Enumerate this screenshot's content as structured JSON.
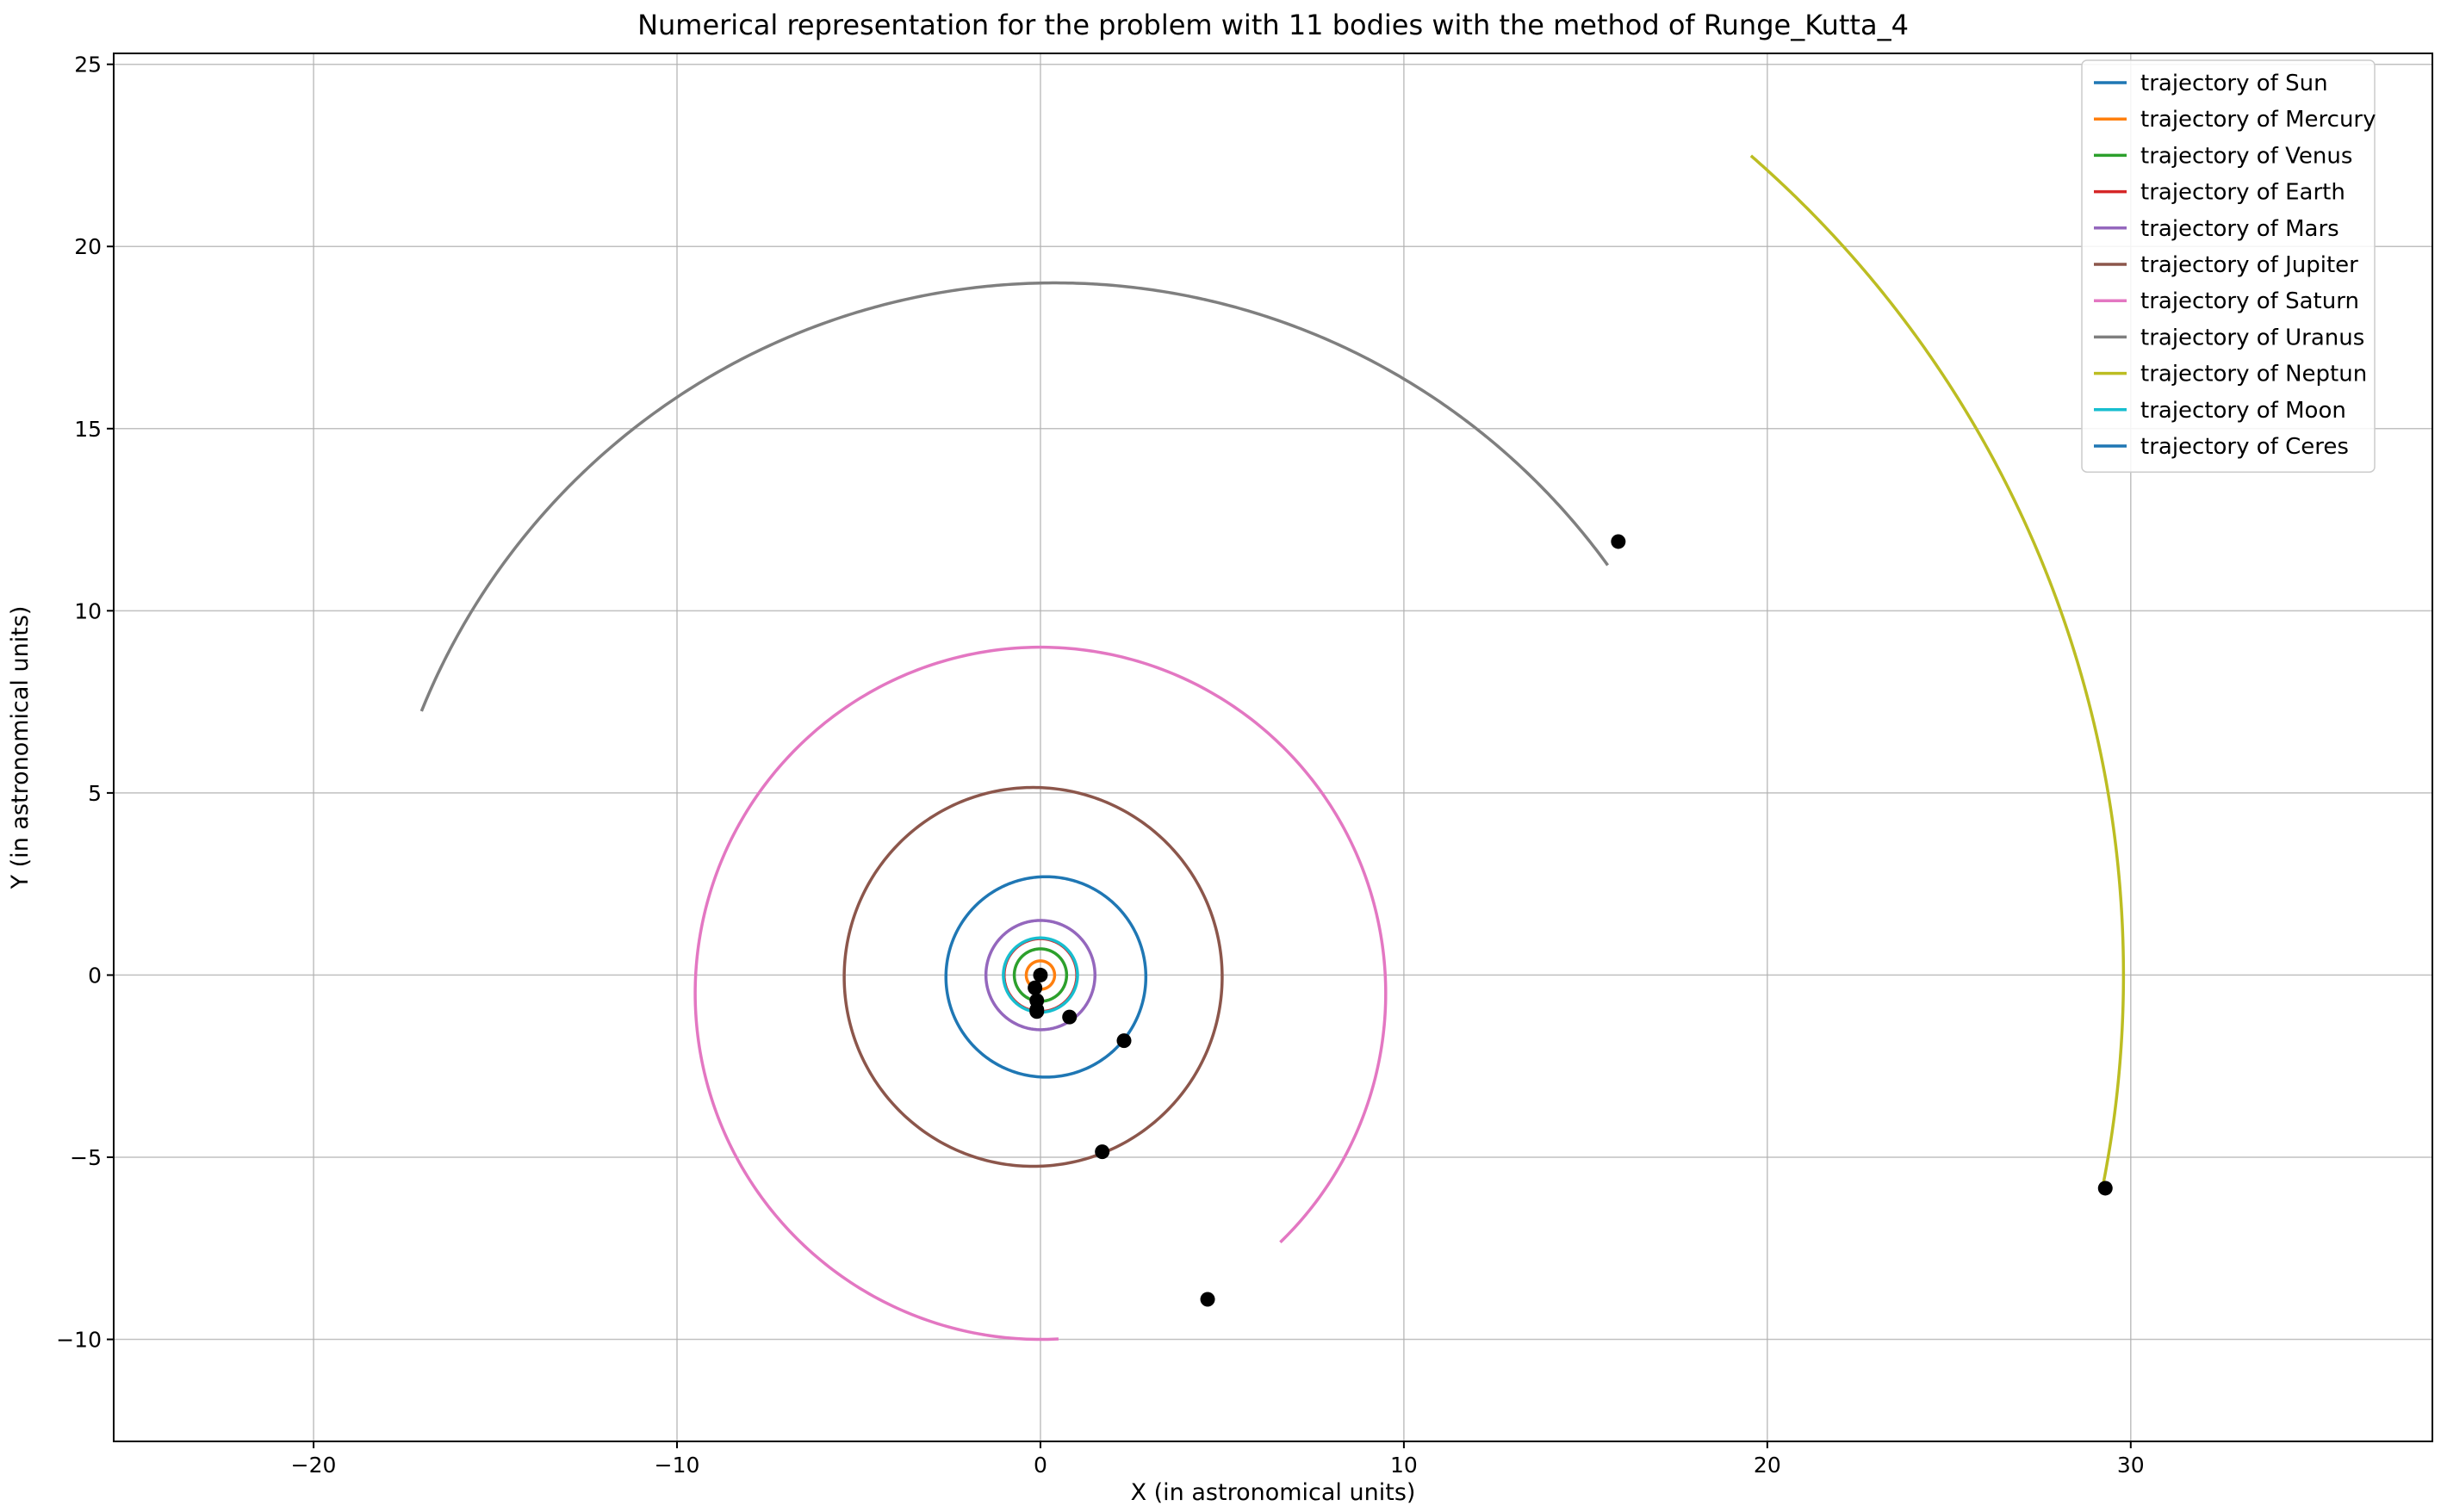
{
  "chart_data": {
    "type": "line",
    "title": "Numerical representation for the problem with 11 bodies with the method of Runge_Kutta_4",
    "xlabel": "X (in astronomical units)",
    "ylabel": "Y (in astronomical units)",
    "xlim": [
      -25.5,
      38.3
    ],
    "ylim": [
      -12.8,
      25.3
    ],
    "xticks": [
      -20,
      -10,
      0,
      10,
      20,
      30
    ],
    "yticks": [
      -10,
      -5,
      0,
      5,
      10,
      15,
      20,
      25
    ],
    "xtick_labels": [
      "−20",
      "−10",
      "0",
      "10",
      "20",
      "30"
    ],
    "ytick_labels": [
      "−10",
      "−5",
      "0",
      "5",
      "10",
      "15",
      "20",
      "25"
    ],
    "grid": true,
    "legend_position": "top-right",
    "series": [
      {
        "name": "trajectory of Sun",
        "color": "#1f77b4",
        "orbit": {
          "cx": 0.0,
          "cy": 0.0,
          "rx": 0.03,
          "ry": 0.03,
          "start_deg": 0,
          "end_deg": 360
        },
        "final_position": [
          0.0,
          0.0
        ]
      },
      {
        "name": "trajectory of Mercury",
        "color": "#ff7f0e",
        "orbit": {
          "cx": 0.0,
          "cy": 0.0,
          "rx": 0.39,
          "ry": 0.39,
          "start_deg": 0,
          "end_deg": 360
        },
        "final_position": [
          -0.15,
          -0.35
        ]
      },
      {
        "name": "trajectory of Venus",
        "color": "#2ca02c",
        "orbit": {
          "cx": 0.0,
          "cy": 0.0,
          "rx": 0.72,
          "ry": 0.72,
          "start_deg": 0,
          "end_deg": 360
        },
        "final_position": [
          -0.1,
          -0.7
        ]
      },
      {
        "name": "trajectory of Earth",
        "color": "#d62728",
        "orbit": {
          "cx": 0.0,
          "cy": 0.0,
          "rx": 1.0,
          "ry": 1.0,
          "start_deg": 0,
          "end_deg": 360
        },
        "final_position": [
          -0.1,
          -1.0
        ]
      },
      {
        "name": "trajectory of Mars",
        "color": "#9467bd",
        "orbit": {
          "cx": 0.0,
          "cy": 0.0,
          "rx": 1.5,
          "ry": 1.5,
          "start_deg": 0,
          "end_deg": 360
        },
        "final_position": [
          0.8,
          -1.15
        ]
      },
      {
        "name": "trajectory of Jupiter",
        "color": "#8c564b",
        "orbit": {
          "cx": -0.2,
          "cy": -0.05,
          "rx": 5.2,
          "ry": 5.2,
          "start_deg": 0,
          "end_deg": 360
        },
        "final_position": [
          1.7,
          -4.85
        ]
      },
      {
        "name": "trajectory of Saturn",
        "color": "#e377c2",
        "orbit": {
          "cx": 0.0,
          "cy": -0.5,
          "rx": 9.5,
          "ry": 9.5,
          "start_deg": -46,
          "end_deg": 273
        },
        "final_position": [
          4.6,
          -8.9
        ]
      },
      {
        "name": "trajectory of Uranus",
        "color": "#7f7f7f",
        "orbit": {
          "cx": 0.4,
          "cy": 0.2,
          "rx": 18.8,
          "ry": 18.8,
          "start_deg": 36,
          "end_deg": 158
        },
        "final_position": [
          15.9,
          11.9
        ]
      },
      {
        "name": "trajectory of Neptun",
        "color": "#bcbd22",
        "orbit": {
          "cx": 0.0,
          "cy": 0.0,
          "rx": 29.8,
          "ry": 29.8,
          "start_deg": -11.5,
          "end_deg": 49
        },
        "final_position": [
          29.3,
          -5.85
        ]
      },
      {
        "name": "trajectory of Moon",
        "color": "#17becf",
        "orbit": {
          "cx": 0.0,
          "cy": 0.0,
          "rx": 1.02,
          "ry": 1.02,
          "start_deg": 0,
          "end_deg": 360
        },
        "final_position": [
          -0.1,
          -0.95
        ]
      },
      {
        "name": "trajectory of Ceres",
        "color": "#1f77b4",
        "orbit": {
          "cx": 0.15,
          "cy": -0.05,
          "rx": 2.75,
          "ry": 2.75,
          "start_deg": 0,
          "end_deg": 360
        },
        "final_position": [
          2.3,
          -1.8
        ]
      }
    ]
  }
}
